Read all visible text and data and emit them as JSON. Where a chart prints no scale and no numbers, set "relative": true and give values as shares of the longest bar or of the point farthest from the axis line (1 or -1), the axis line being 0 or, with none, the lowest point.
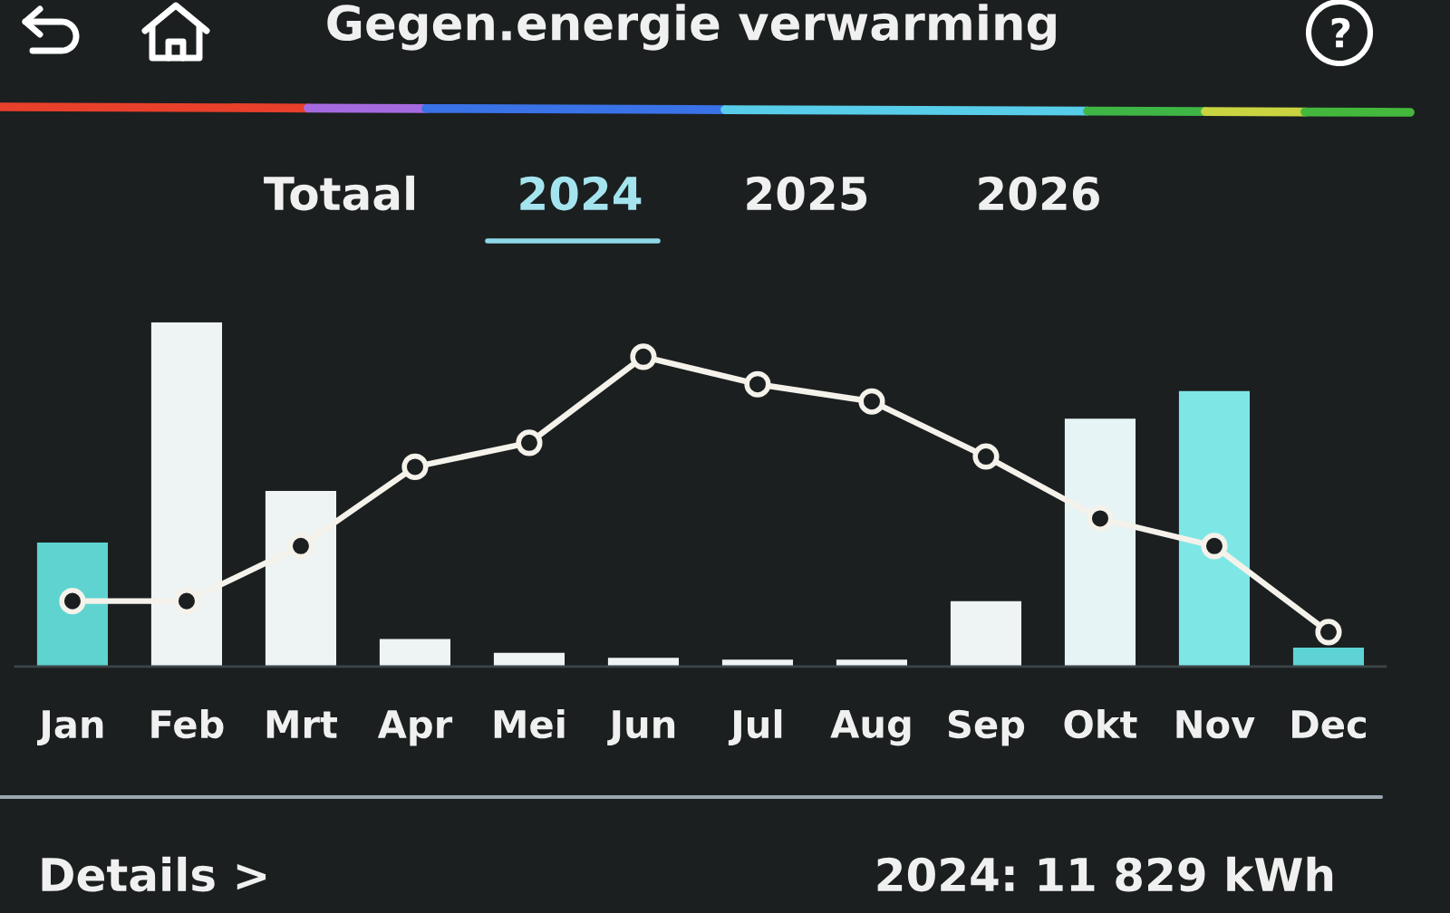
{
  "chart_data": {
    "type": "bar",
    "title": "Gegen.energie verwarming",
    "categories": [
      "Jan",
      "Feb",
      "Mrt",
      "Apr",
      "Mei",
      "Jun",
      "Jul",
      "Aug",
      "Sep",
      "Okt",
      "Nov",
      "Dec"
    ],
    "relative": true,
    "marker": "circle",
    "series": [
      {
        "colors": [
          "#5ed3d0",
          "#eef3f4",
          "#eef3f4",
          "#eef3f4",
          "#eef3f4",
          "#eef3f4",
          "#eef3f4",
          "#eef3f4",
          "#eef3f4",
          "#e6f4f6",
          "#7fe6e6",
          "#5ed3d6"
        ],
        "values": [
          0.36,
          1,
          0.51,
          0.08,
          0.04,
          0.025,
          0.02,
          0.02,
          0.19,
          0.72,
          0.8,
          0.055
        ]
      },
      {
        "type": "line",
        "color": "#f4f2ea",
        "values": [
          0.19,
          0.19,
          0.35,
          0.58,
          0.65,
          0.9,
          0.82,
          0.77,
          0.61,
          0.43,
          0.35,
          0.1
        ]
      }
    ],
    "annotations": [
      "Totaal",
      "2024",
      "2025",
      "2026",
      "Details >",
      "2024: 11 829 kWh"
    ]
  }
}
